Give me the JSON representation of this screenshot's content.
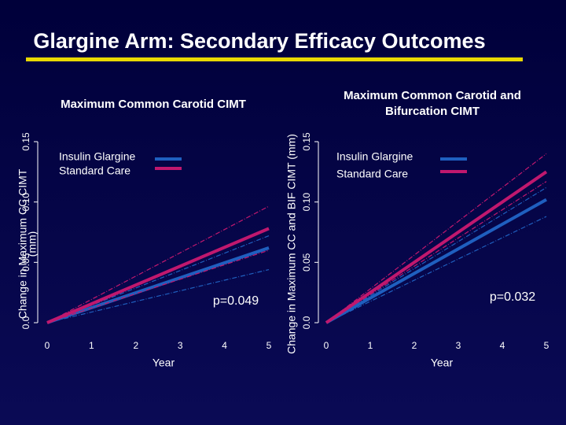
{
  "header": {
    "title": "Glargine Arm: Secondary Efficacy Outcomes"
  },
  "chart_data": [
    {
      "type": "line",
      "title": [
        "Maximum Common Carotid CIMT"
      ],
      "x_label": "Year",
      "y_label": [
        "Change in Maximum CC CIMT",
        "(mm)"
      ],
      "x": [
        0,
        5
      ],
      "xlim": [
        0,
        5
      ],
      "xticks": [
        0,
        1,
        2,
        3,
        4,
        5
      ],
      "ylim": [
        0,
        0.15
      ],
      "yticks": [
        {
          "value": 0,
          "label": "0.0"
        },
        0.05,
        {
          "value": 0.1,
          "label": "0.10"
        },
        0.15
      ],
      "series": [
        {
          "name": "Insulin Glargine",
          "color": "#1f5fbf",
          "values": [
            0,
            0.062
          ],
          "ci_lower": [
            0,
            0.044
          ],
          "ci_upper": [
            0,
            0.072
          ]
        },
        {
          "name": "Standard Care",
          "color": "#c0186e",
          "values": [
            0,
            0.078
          ],
          "ci_lower": [
            0,
            0.06
          ],
          "ci_upper": [
            0,
            0.0965
          ]
        }
      ],
      "annotation": "p=0.049"
    },
    {
      "type": "line",
      "title": [
        "Maximum Common Carotid and",
        "Bifurcation CIMT"
      ],
      "x_label": "Year",
      "y_label": [
        "Change in Maximum  CC and BIF CIMT (mm)"
      ],
      "x": [
        0,
        5
      ],
      "xlim": [
        0,
        5
      ],
      "xticks": [
        0,
        1,
        2,
        3,
        4,
        5
      ],
      "ylim": [
        0,
        0.15
      ],
      "yticks": [
        {
          "value": 0,
          "label": "0.0"
        },
        0.05,
        {
          "value": 0.1,
          "label": "0.10"
        },
        0.15
      ],
      "series": [
        {
          "name": "Insulin Glargine",
          "color": "#1f5fbf",
          "values": [
            0,
            0.102
          ],
          "ci_lower": [
            0,
            0.088
          ],
          "ci_upper": [
            0,
            0.112
          ]
        },
        {
          "name": "Standard Care",
          "color": "#c0186e",
          "values": [
            0,
            0.125
          ],
          "ci_lower": [
            0,
            0.117
          ],
          "ci_upper": [
            0,
            0.14
          ]
        }
      ],
      "annotation": "p=0.032"
    }
  ]
}
